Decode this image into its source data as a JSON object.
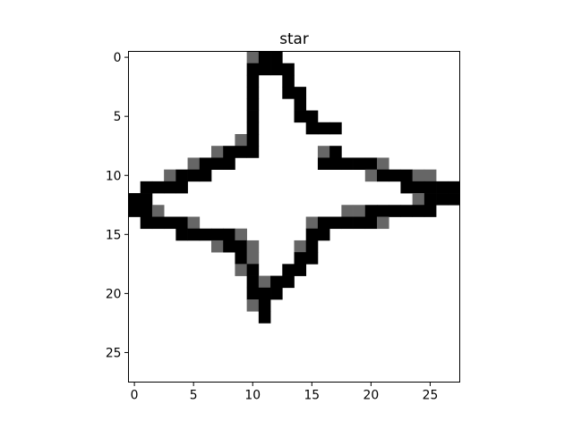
{
  "chart_data": {
    "type": "heatmap",
    "title": "star",
    "xlabel": "",
    "ylabel": "",
    "xlim": [
      -0.5,
      27.5
    ],
    "ylim": [
      27.5,
      -0.5
    ],
    "x_ticks": [
      0,
      5,
      10,
      15,
      20,
      25
    ],
    "y_ticks": [
      0,
      5,
      10,
      15,
      20,
      25
    ],
    "colormap": "gray_r",
    "colors": {
      "dark": "#000000",
      "mid": "#666666",
      "background": "#ffffff"
    },
    "grid": false,
    "legend": "none",
    "shape": [
      28,
      28
    ],
    "value_scale": "0 = white, 0.6 = gray, 1 = black",
    "cells": [
      [
        0,
        10,
        0.6
      ],
      [
        0,
        11,
        1
      ],
      [
        0,
        12,
        1
      ],
      [
        1,
        10,
        1
      ],
      [
        1,
        11,
        1
      ],
      [
        1,
        12,
        1
      ],
      [
        1,
        13,
        1
      ],
      [
        2,
        10,
        1
      ],
      [
        2,
        13,
        1
      ],
      [
        3,
        10,
        1
      ],
      [
        3,
        13,
        1
      ],
      [
        3,
        14,
        1
      ],
      [
        4,
        10,
        1
      ],
      [
        4,
        14,
        1
      ],
      [
        5,
        10,
        1
      ],
      [
        5,
        14,
        1
      ],
      [
        5,
        15,
        1
      ],
      [
        6,
        10,
        1
      ],
      [
        6,
        15,
        1
      ],
      [
        6,
        16,
        1
      ],
      [
        6,
        17,
        1
      ],
      [
        7,
        9,
        0.6
      ],
      [
        7,
        10,
        1
      ],
      [
        8,
        7,
        0.6
      ],
      [
        8,
        8,
        1
      ],
      [
        8,
        9,
        1
      ],
      [
        8,
        10,
        1
      ],
      [
        8,
        16,
        0.6
      ],
      [
        8,
        17,
        1
      ],
      [
        9,
        5,
        0.6
      ],
      [
        9,
        6,
        1
      ],
      [
        9,
        7,
        1
      ],
      [
        9,
        8,
        1
      ],
      [
        9,
        16,
        1
      ],
      [
        9,
        17,
        1
      ],
      [
        9,
        18,
        1
      ],
      [
        9,
        19,
        1
      ],
      [
        9,
        20,
        1
      ],
      [
        9,
        21,
        0.6
      ],
      [
        10,
        3,
        0.6
      ],
      [
        10,
        4,
        1
      ],
      [
        10,
        5,
        1
      ],
      [
        10,
        6,
        1
      ],
      [
        10,
        20,
        0.6
      ],
      [
        10,
        21,
        1
      ],
      [
        10,
        22,
        1
      ],
      [
        10,
        23,
        1
      ],
      [
        10,
        24,
        0.6
      ],
      [
        10,
        25,
        0.6
      ],
      [
        11,
        1,
        1
      ],
      [
        11,
        2,
        1
      ],
      [
        11,
        3,
        1
      ],
      [
        11,
        4,
        1
      ],
      [
        11,
        23,
        1
      ],
      [
        11,
        24,
        1
      ],
      [
        11,
        25,
        1
      ],
      [
        11,
        26,
        1
      ],
      [
        11,
        27,
        1
      ],
      [
        12,
        0,
        1
      ],
      [
        12,
        1,
        1
      ],
      [
        12,
        24,
        0.6
      ],
      [
        12,
        25,
        1
      ],
      [
        12,
        26,
        1
      ],
      [
        12,
        27,
        1
      ],
      [
        13,
        0,
        1
      ],
      [
        13,
        1,
        1
      ],
      [
        13,
        2,
        0.6
      ],
      [
        13,
        18,
        0.6
      ],
      [
        13,
        19,
        0.6
      ],
      [
        13,
        20,
        1
      ],
      [
        13,
        21,
        1
      ],
      [
        13,
        22,
        1
      ],
      [
        13,
        23,
        1
      ],
      [
        13,
        24,
        1
      ],
      [
        13,
        25,
        1
      ],
      [
        14,
        1,
        1
      ],
      [
        14,
        2,
        1
      ],
      [
        14,
        3,
        1
      ],
      [
        14,
        4,
        1
      ],
      [
        14,
        5,
        0.6
      ],
      [
        14,
        15,
        0.6
      ],
      [
        14,
        16,
        1
      ],
      [
        14,
        17,
        1
      ],
      [
        14,
        18,
        1
      ],
      [
        14,
        19,
        1
      ],
      [
        14,
        20,
        1
      ],
      [
        14,
        21,
        0.6
      ],
      [
        15,
        4,
        1
      ],
      [
        15,
        5,
        1
      ],
      [
        15,
        6,
        1
      ],
      [
        15,
        7,
        1
      ],
      [
        15,
        8,
        1
      ],
      [
        15,
        9,
        0.6
      ],
      [
        15,
        15,
        1
      ],
      [
        15,
        16,
        1
      ],
      [
        16,
        7,
        0.6
      ],
      [
        16,
        8,
        1
      ],
      [
        16,
        9,
        1
      ],
      [
        16,
        10,
        0.6
      ],
      [
        16,
        14,
        0.6
      ],
      [
        16,
        15,
        1
      ],
      [
        17,
        9,
        1
      ],
      [
        17,
        10,
        0.6
      ],
      [
        17,
        14,
        1
      ],
      [
        17,
        15,
        1
      ],
      [
        18,
        9,
        0.6
      ],
      [
        18,
        10,
        1
      ],
      [
        18,
        13,
        1
      ],
      [
        18,
        14,
        1
      ],
      [
        19,
        10,
        1
      ],
      [
        19,
        11,
        0.6
      ],
      [
        19,
        12,
        1
      ],
      [
        19,
        13,
        1
      ],
      [
        20,
        10,
        1
      ],
      [
        20,
        11,
        1
      ],
      [
        20,
        12,
        1
      ],
      [
        21,
        10,
        0.6
      ],
      [
        21,
        11,
        1
      ],
      [
        22,
        11,
        1
      ]
    ]
  }
}
